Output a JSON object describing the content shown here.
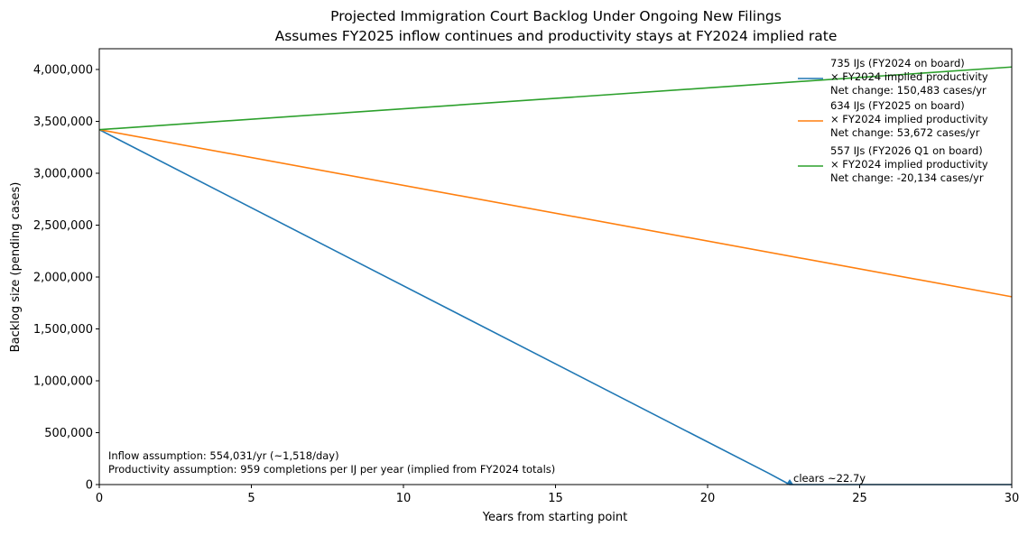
{
  "chart_data": {
    "type": "line",
    "title": "Projected Immigration Court Backlog Under Ongoing New Filings",
    "subtitle": "Assumes FY2025 inflow continues and productivity stays at FY2024 implied rate",
    "xlabel": "Years from starting point",
    "ylabel": "Backlog size (pending cases)",
    "xlim": [
      0,
      30
    ],
    "ylim": [
      0,
      4200000
    ],
    "xticks": [
      0,
      5,
      10,
      15,
      20,
      25,
      30
    ],
    "xtick_labels": [
      "0",
      "5",
      "10",
      "15",
      "20",
      "25",
      "30"
    ],
    "yticks": [
      0,
      500000,
      1000000,
      1500000,
      2000000,
      2500000,
      3000000,
      3500000,
      4000000
    ],
    "ytick_labels": [
      "0",
      "500,000",
      "1,000,000",
      "1,500,000",
      "2,000,000",
      "2,500,000",
      "3,000,000",
      "3,500,000",
      "4,000,000"
    ],
    "grid": false,
    "legend_position": "top-right",
    "series": [
      {
        "name": "735 IJs (FY2024 on board)\n× FY2024 implied productivity\nNet change: 150,483 cases/yr",
        "color": "#1f77b4",
        "x": [
          0,
          22,
          22.7,
          30
        ],
        "y": [
          3420000,
          110000,
          0,
          0
        ]
      },
      {
        "name": "634 IJs (FY2025 on board)\n× FY2024 implied productivity\nNet change: 53,672 cases/yr",
        "color": "#ff7f0e",
        "x": [
          0,
          30
        ],
        "y": [
          3420000,
          1810000
        ]
      },
      {
        "name": "557 IJs (FY2026 Q1 on board)\n× FY2024 implied productivity\nNet change: -20,134 cases/yr",
        "color": "#2ca02c",
        "x": [
          0,
          30
        ],
        "y": [
          3420000,
          4024000
        ]
      }
    ],
    "markers": [
      {
        "x": 22.7,
        "y": 0,
        "color": "#1f77b4"
      }
    ],
    "annotations": [
      {
        "text": "clears ~22.7y",
        "x": 22.7,
        "y": 0
      }
    ],
    "notes": [
      "Inflow assumption: 554,031/yr (~1,518/day)",
      "Productivity assumption: 959 completions per IJ per year (implied from FY2024 totals)"
    ]
  }
}
